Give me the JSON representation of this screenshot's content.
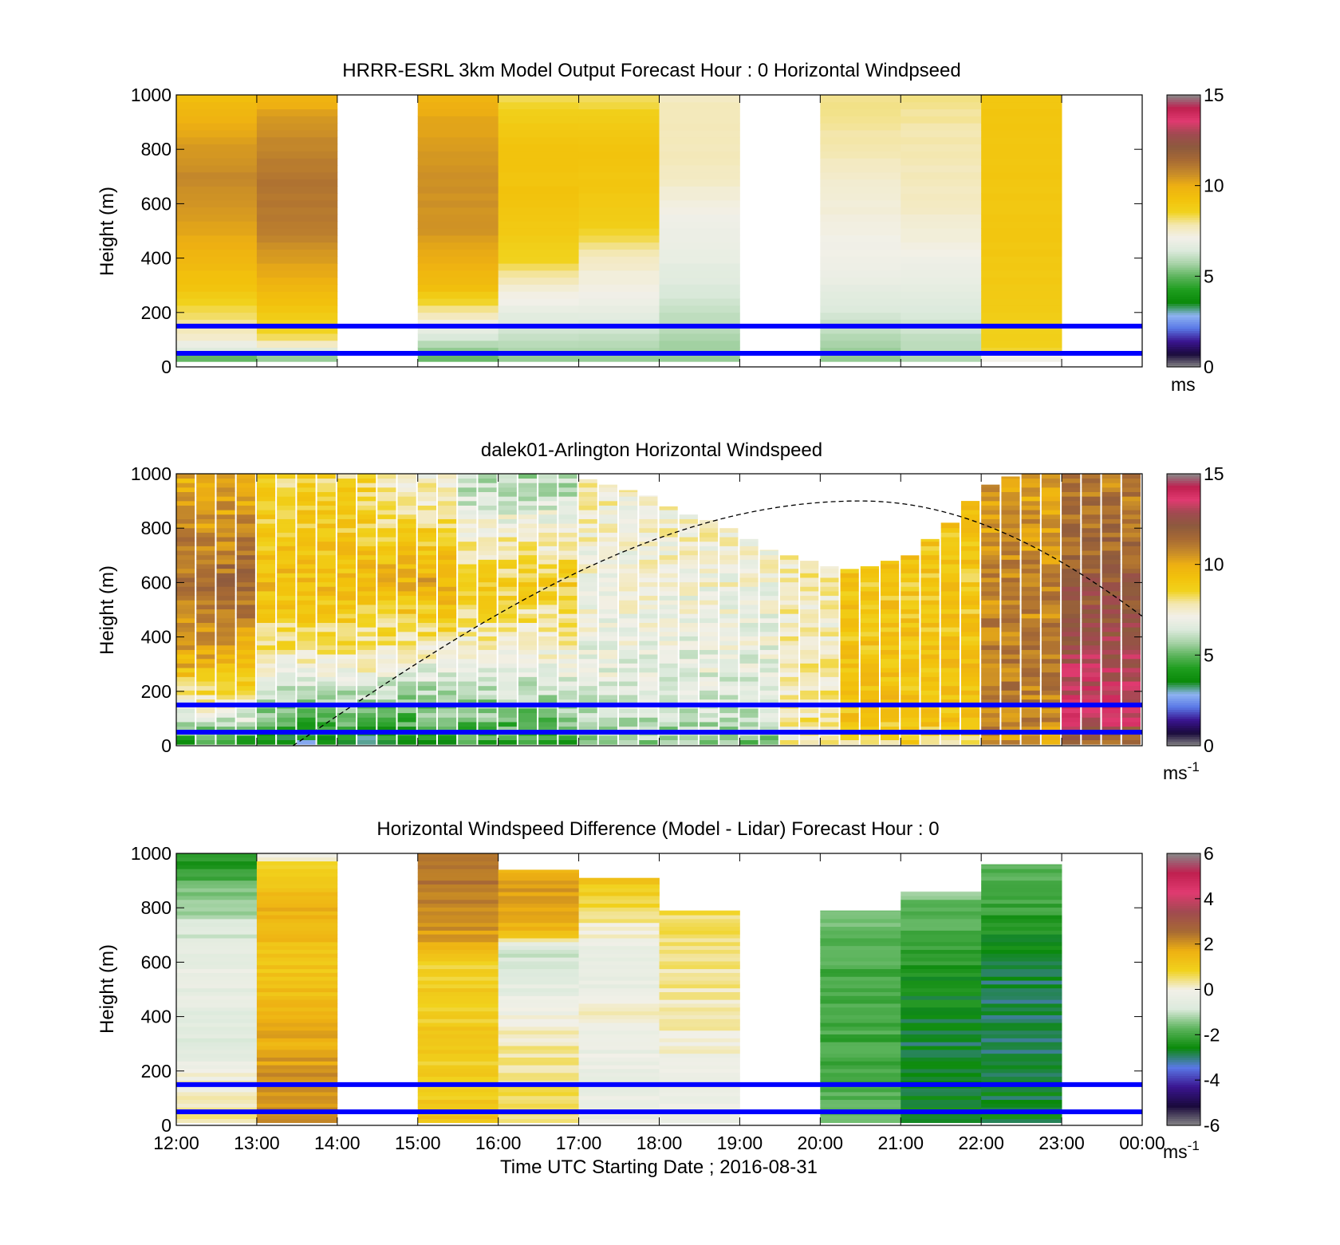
{
  "figure": {
    "xlabel": "Time UTC  Starting Date ; 2016-08-31",
    "xticks": [
      "12:00",
      "13:00",
      "14:00",
      "15:00",
      "16:00",
      "17:00",
      "18:00",
      "19:00",
      "20:00",
      "21:00",
      "22:00",
      "23:00",
      "00:00"
    ]
  },
  "colors": {
    "reference_lines": "#0000ff",
    "sun_curve": "#000000",
    "colormap_speed": [
      "#888888",
      "#1a0a3c",
      "#3a1590",
      "#5a78e6",
      "#8fb4f2",
      "#0a8a0a",
      "#1f9e1f",
      "#5cb45c",
      "#a8d3a8",
      "#dceadc",
      "#f2f0e8",
      "#f3e7b0",
      "#f1d21c",
      "#f2c20c",
      "#eeb012",
      "#c68a2a",
      "#a76a34",
      "#8d5a3e",
      "#a04a50",
      "#e03a70",
      "#c02050",
      "#888888"
    ],
    "colormap_diff": [
      "#888888",
      "#1a0a3c",
      "#3a1590",
      "#5a78e6",
      "#0a8a0a",
      "#5cb45c",
      "#dceadc",
      "#f2f0e8",
      "#f1d21c",
      "#eeb012",
      "#a76a34",
      "#a04a50",
      "#e03a70",
      "#c02050",
      "#888888"
    ]
  },
  "chart_data": [
    {
      "type": "heatmap",
      "title": "HRRR-ESRL 3km Model Output   Forecast Hour : 0 Horizontal Windpseed",
      "ylabel": "Height (m)",
      "xlabel": "",
      "xlim": [
        "12:00",
        "00:00"
      ],
      "ylim": [
        0,
        1000
      ],
      "yticks": [
        "0",
        "200",
        "400",
        "600",
        "800",
        "1000"
      ],
      "colorbar": {
        "range": [
          0,
          15
        ],
        "ticks": [
          "0",
          "5",
          "10",
          "15"
        ],
        "unit": "ms"
      },
      "reference_lines_m": [
        50,
        150
      ],
      "columns_hour_start": [
        12,
        13,
        15,
        16,
        17,
        18,
        20,
        21,
        22
      ],
      "profiles_ms": [
        [
          [
            30,
            5
          ],
          [
            60,
            6.5
          ],
          [
            110,
            7.5
          ],
          [
            300,
            9.2
          ],
          [
            500,
            10.2
          ],
          [
            700,
            10.8
          ],
          [
            900,
            10.0
          ],
          [
            1000,
            9.3
          ]
        ],
        [
          [
            30,
            5.5
          ],
          [
            100,
            8.2
          ],
          [
            300,
            9.8
          ],
          [
            500,
            11.0
          ],
          [
            700,
            11.2
          ],
          [
            900,
            10.5
          ],
          [
            1000,
            9.8
          ]
        ],
        [
          [
            30,
            5
          ],
          [
            60,
            5.5
          ],
          [
            160,
            7.2
          ],
          [
            300,
            9.5
          ],
          [
            500,
            10.5
          ],
          [
            700,
            10.6
          ],
          [
            900,
            10.2
          ],
          [
            1000,
            9.8
          ]
        ],
        [
          [
            30,
            5.5
          ],
          [
            160,
            6.5
          ],
          [
            300,
            7.5
          ],
          [
            400,
            8.6
          ],
          [
            600,
            9.2
          ],
          [
            800,
            9.2
          ],
          [
            900,
            8.9
          ],
          [
            1000,
            8.2
          ]
        ],
        [
          [
            30,
            5.5
          ],
          [
            200,
            6.8
          ],
          [
            400,
            7.6
          ],
          [
            500,
            8.6
          ],
          [
            600,
            9.0
          ],
          [
            800,
            9.2
          ],
          [
            900,
            8.9
          ],
          [
            1000,
            8.2
          ]
        ],
        [
          [
            30,
            5.5
          ],
          [
            400,
            6.8
          ],
          [
            600,
            7.2
          ],
          [
            700,
            7.6
          ],
          [
            900,
            7.8
          ],
          [
            1000,
            7.6
          ]
        ],
        [
          [
            30,
            5.5
          ],
          [
            300,
            6.8
          ],
          [
            500,
            7.2
          ],
          [
            700,
            7.5
          ],
          [
            800,
            7.8
          ],
          [
            900,
            8.0
          ],
          [
            1000,
            8.1
          ]
        ],
        [
          [
            30,
            5.8
          ],
          [
            300,
            6.8
          ],
          [
            450,
            7.2
          ],
          [
            600,
            7.6
          ],
          [
            900,
            7.9
          ],
          [
            1000,
            8.1
          ]
        ],
        [
          [
            30,
            7.0
          ],
          [
            60,
            8.6
          ],
          [
            300,
            9.0
          ],
          [
            700,
            9.1
          ],
          [
            1000,
            9.1
          ]
        ]
      ]
    },
    {
      "type": "heatmap",
      "title": "dalek01-Arlington  Horizontal Windspeed",
      "ylabel": "Height (m)",
      "xlabel": "",
      "xlim": [
        "12:00",
        "00:00"
      ],
      "ylim": [
        0,
        1000
      ],
      "yticks": [
        "0",
        "200",
        "400",
        "600",
        "800",
        "1000"
      ],
      "colorbar": {
        "range": [
          0,
          15
        ],
        "ticks": [
          "0",
          "5",
          "10",
          "15"
        ],
        "unit": "ms",
        "unit_exponent": "-1"
      },
      "reference_lines_m": [
        50,
        150
      ],
      "sun_curve": {
        "style": "dashed",
        "start": [
          "13:27",
          0
        ],
        "peak": [
          "20:30",
          900
        ],
        "end": [
          "00:00",
          520
        ]
      },
      "profile_interval_min": 15,
      "profile_top_m": [
        1000,
        1000,
        1000,
        1000,
        1000,
        1000,
        1000,
        1000,
        1000,
        1000,
        1000,
        1000,
        1000,
        1000,
        1000,
        1000,
        1000,
        1000,
        1000,
        1000,
        980,
        960,
        940,
        920,
        880,
        850,
        830,
        800,
        760,
        720,
        700,
        680,
        660,
        650,
        660,
        680,
        700,
        760,
        820,
        900,
        960,
        990,
        1000,
        1000,
        1000,
        1000,
        1000,
        1000
      ],
      "speed_ms_by_height": {
        "heights_m": [
          20,
          100,
          300,
          600,
          950
        ],
        "column_groups": [
          {
            "from": "12:00",
            "to": "13:00",
            "values": [
              4.5,
              6.5,
              9.8,
              11.5,
              10.0
            ]
          },
          {
            "from": "13:00",
            "to": "14:30",
            "values": [
              3.5,
              5.0,
              7.5,
              9.5,
              8.5
            ]
          },
          {
            "from": "14:30",
            "to": "15:30",
            "values": [
              4.0,
              5.0,
              7.0,
              10.0,
              7.5
            ]
          },
          {
            "from": "15:30",
            "to": "17:00",
            "values": [
              4.5,
              5.2,
              7.0,
              8.8,
              6.0
            ]
          },
          {
            "from": "17:00",
            "to": "19:30",
            "values": [
              5.5,
              6.2,
              6.8,
              7.2,
              7.5
            ]
          },
          {
            "from": "19:30",
            "to": "20:15",
            "values": [
              7.5,
              7.8,
              7.6,
              7.5,
              8.5
            ]
          },
          {
            "from": "20:15",
            "to": "22:00",
            "values": [
              8.5,
              9.2,
              9.2,
              9.0,
              9.2
            ]
          },
          {
            "from": "22:00",
            "to": "23:00",
            "values": [
              10.5,
              11.0,
              11.0,
              10.8,
              10.2
            ]
          },
          {
            "from": "23:00",
            "to": "00:00",
            "values": [
              11.5,
              13.5,
              13.0,
              12.0,
              11.0
            ]
          }
        ]
      }
    },
    {
      "type": "heatmap",
      "title": "Horizontal Windspeed Difference (Model - Lidar) Forecast Hour : 0",
      "ylabel": "Height (m)",
      "xlabel": "Time UTC  Starting Date ; 2016-08-31",
      "xlim": [
        "12:00",
        "00:00"
      ],
      "ylim": [
        0,
        1000
      ],
      "yticks": [
        "0",
        "200",
        "400",
        "600",
        "800",
        "1000"
      ],
      "colorbar": {
        "range": [
          -6,
          6
        ],
        "ticks": [
          "-6",
          "-4",
          "-2",
          "0",
          "2",
          "4",
          "6"
        ],
        "unit": "ms",
        "unit_exponent": "-1"
      },
      "reference_lines_m": [
        50,
        150
      ],
      "columns_hour_start": [
        12,
        13,
        15,
        16,
        17,
        18,
        20,
        21,
        22
      ],
      "column_top_m": [
        1000,
        1000,
        1000,
        940,
        910,
        790,
        790,
        860,
        960
      ],
      "profiles_diff_ms": [
        [
          [
            20,
            0.5
          ],
          [
            100,
            0.2
          ],
          [
            300,
            -0.6
          ],
          [
            600,
            -0.4
          ],
          [
            800,
            -1.2
          ],
          [
            1000,
            -2.5
          ]
        ],
        [
          [
            20,
            2.2
          ],
          [
            200,
            2.0
          ],
          [
            400,
            1.5
          ],
          [
            600,
            1.2
          ],
          [
            800,
            1.6
          ],
          [
            950,
            0.9
          ],
          [
            1000,
            -0.3
          ]
        ],
        [
          [
            20,
            1.2
          ],
          [
            200,
            1.0
          ],
          [
            400,
            1.0
          ],
          [
            600,
            0.9
          ],
          [
            700,
            2.0
          ],
          [
            900,
            2.4
          ],
          [
            1000,
            2.5
          ]
        ],
        [
          [
            20,
            0.6
          ],
          [
            200,
            0.4
          ],
          [
            400,
            0.0
          ],
          [
            500,
            -0.5
          ],
          [
            650,
            -1.0
          ],
          [
            700,
            1.4
          ],
          [
            900,
            2.0
          ],
          [
            940,
            1.6
          ]
        ],
        [
          [
            20,
            -0.3
          ],
          [
            200,
            -0.4
          ],
          [
            400,
            0.0
          ],
          [
            600,
            -0.6
          ],
          [
            800,
            0.6
          ],
          [
            910,
            1.2
          ]
        ],
        [
          [
            20,
            -0.3
          ],
          [
            300,
            0.0
          ],
          [
            500,
            0.3
          ],
          [
            700,
            0.6
          ],
          [
            790,
            0.6
          ]
        ],
        [
          [
            20,
            -1.8
          ],
          [
            300,
            -2.0
          ],
          [
            600,
            -1.9
          ],
          [
            730,
            -1.6
          ]
        ],
        [
          [
            20,
            -2.6
          ],
          [
            300,
            -2.8
          ],
          [
            600,
            -2.3
          ],
          [
            860,
            -1.4
          ]
        ],
        [
          [
            20,
            -2.6
          ],
          [
            300,
            -3.0
          ],
          [
            600,
            -2.8
          ],
          [
            960,
            -1.6
          ]
        ]
      ]
    }
  ]
}
